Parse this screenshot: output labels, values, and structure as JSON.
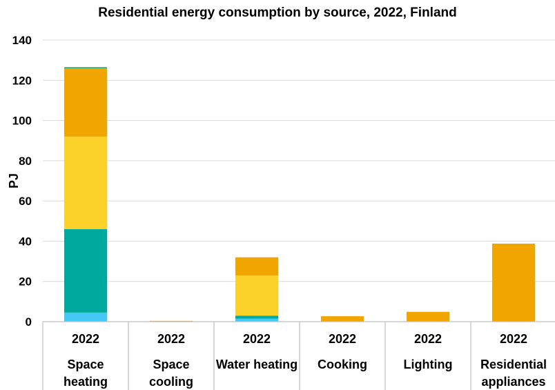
{
  "chart_data": {
    "type": "bar",
    "stacked": true,
    "title": "Residential energy consumption by source, 2022, Finland",
    "ylabel": "PJ",
    "xlabel": "",
    "ylim": [
      0,
      140
    ],
    "yticks": [
      0,
      20,
      40,
      60,
      80,
      100,
      120,
      140
    ],
    "grid": true,
    "legend": "none",
    "categories": [
      {
        "year": "2022",
        "name": "Space heating"
      },
      {
        "year": "2022",
        "name": "Space cooling"
      },
      {
        "year": "2022",
        "name": "Water heating"
      },
      {
        "year": "2022",
        "name": "Cooking"
      },
      {
        "year": "2022",
        "name": "Lighting"
      },
      {
        "year": "2022",
        "name": "Residential appliances"
      }
    ],
    "series": [
      {
        "color": "#44c8f5",
        "values": [
          4.5,
          0,
          1.5,
          0,
          0,
          0
        ]
      },
      {
        "color": "#00a99d",
        "values": [
          41.5,
          0,
          1.5,
          0,
          0,
          0
        ]
      },
      {
        "color": "#fcd12a",
        "values": [
          46,
          0,
          20,
          0,
          0,
          0
        ]
      },
      {
        "color": "#f0a500",
        "values": [
          34,
          0.4,
          9,
          2.7,
          4.9,
          38.8
        ]
      },
      {
        "color": "#00a36c",
        "values": [
          0.5,
          0,
          0,
          0,
          0,
          0
        ]
      }
    ]
  }
}
